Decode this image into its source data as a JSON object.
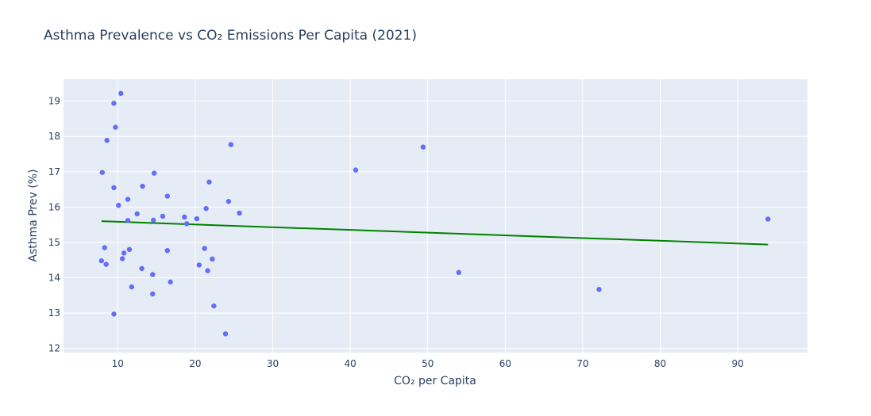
{
  "chart_data": {
    "type": "scatter",
    "title": "Asthma Prevalence vs CO₂ Emissions Per Capita (2021)",
    "xlabel": "CO₂ per Capita",
    "ylabel": "Asthma Prev (%)",
    "xlim": [
      3.0,
      99.0
    ],
    "ylim": [
      11.88,
      19.62
    ],
    "xticks": [
      10,
      20,
      30,
      40,
      50,
      60,
      70,
      80,
      90
    ],
    "yticks": [
      12,
      13,
      14,
      15,
      16,
      17,
      18,
      19
    ],
    "grid": true,
    "legend": "none",
    "colors": {
      "points": "#636efa",
      "trend": "#008000",
      "plot_bg": "#e5ecf6",
      "grid": "#ffffff"
    },
    "points": [
      {
        "x": 7.9,
        "y": 14.48
      },
      {
        "x": 8.0,
        "y": 16.98
      },
      {
        "x": 8.3,
        "y": 14.85
      },
      {
        "x": 8.5,
        "y": 14.38
      },
      {
        "x": 8.6,
        "y": 17.89
      },
      {
        "x": 9.5,
        "y": 16.55
      },
      {
        "x": 9.5,
        "y": 18.94
      },
      {
        "x": 9.5,
        "y": 12.97
      },
      {
        "x": 9.7,
        "y": 18.26
      },
      {
        "x": 10.1,
        "y": 16.05
      },
      {
        "x": 10.4,
        "y": 19.22
      },
      {
        "x": 10.6,
        "y": 14.54
      },
      {
        "x": 10.8,
        "y": 14.7
      },
      {
        "x": 11.3,
        "y": 16.22
      },
      {
        "x": 11.3,
        "y": 15.62
      },
      {
        "x": 11.5,
        "y": 14.8
      },
      {
        "x": 11.8,
        "y": 13.74
      },
      {
        "x": 12.5,
        "y": 15.81
      },
      {
        "x": 13.1,
        "y": 14.26
      },
      {
        "x": 13.2,
        "y": 16.59
      },
      {
        "x": 14.5,
        "y": 14.09
      },
      {
        "x": 14.5,
        "y": 13.54
      },
      {
        "x": 14.6,
        "y": 15.63
      },
      {
        "x": 14.7,
        "y": 16.96
      },
      {
        "x": 15.8,
        "y": 15.74
      },
      {
        "x": 16.4,
        "y": 16.31
      },
      {
        "x": 16.4,
        "y": 14.77
      },
      {
        "x": 16.8,
        "y": 13.88
      },
      {
        "x": 18.6,
        "y": 15.72
      },
      {
        "x": 18.9,
        "y": 15.53
      },
      {
        "x": 20.2,
        "y": 15.67
      },
      {
        "x": 20.5,
        "y": 14.36
      },
      {
        "x": 21.2,
        "y": 14.83
      },
      {
        "x": 21.4,
        "y": 15.96
      },
      {
        "x": 21.6,
        "y": 14.2
      },
      {
        "x": 21.8,
        "y": 16.71
      },
      {
        "x": 22.2,
        "y": 14.53
      },
      {
        "x": 22.4,
        "y": 13.2
      },
      {
        "x": 23.9,
        "y": 12.41
      },
      {
        "x": 24.3,
        "y": 16.16
      },
      {
        "x": 24.6,
        "y": 17.77
      },
      {
        "x": 25.7,
        "y": 15.83
      },
      {
        "x": 40.7,
        "y": 17.05
      },
      {
        "x": 49.4,
        "y": 17.7
      },
      {
        "x": 54.0,
        "y": 14.15
      },
      {
        "x": 72.1,
        "y": 13.67
      },
      {
        "x": 93.9,
        "y": 15.66
      }
    ],
    "trendline": {
      "x": [
        7.9,
        93.9
      ],
      "y": [
        15.6,
        14.94
      ]
    }
  }
}
